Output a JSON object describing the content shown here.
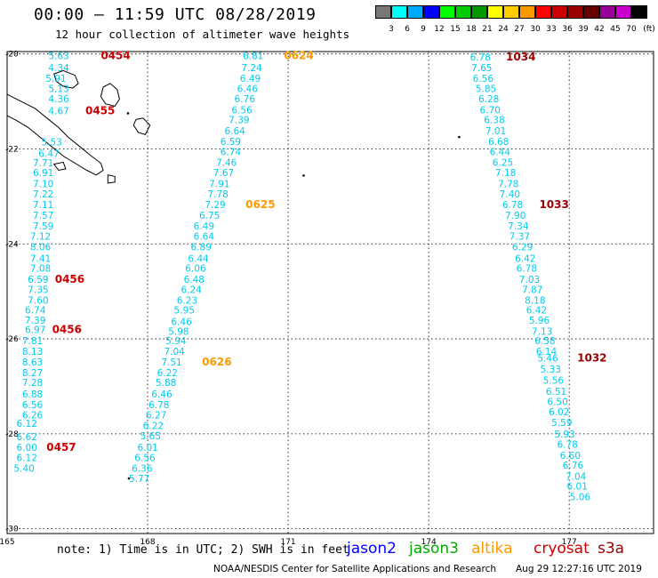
{
  "title": "00:00 – 11:59 UTC 08/28/2019",
  "subtitle": "12 hour collection of altimeter wave heights",
  "colorbar": {
    "unit": "(ft)",
    "colors": [
      "#777777",
      "#00ffff",
      "#00aaff",
      "#0000ff",
      "#00ff00",
      "#00cc00",
      "#009900",
      "#ffff00",
      "#ffcc00",
      "#ff9900",
      "#ff0000",
      "#cc0000",
      "#990000",
      "#660000",
      "#990099",
      "#cc00cc",
      "#000000"
    ],
    "labels": [
      "3",
      "6",
      "9",
      "12",
      "15",
      "18",
      "21",
      "24",
      "27",
      "30",
      "33",
      "36",
      "39",
      "42",
      "45",
      "70"
    ]
  },
  "axes": {
    "lon_ticks": [
      "165",
      "168",
      "171",
      "174",
      "177"
    ],
    "lat_ticks": [
      "-20",
      "-22",
      "-24",
      "-26",
      "-28",
      "-30"
    ],
    "lon_range": [
      165,
      178.8
    ],
    "lat_range": [
      -19.95,
      -30.1
    ]
  },
  "colors": {
    "swh": "#00ccee",
    "jason2": "#0000ff",
    "jason3": "#00aa00",
    "altika": "#ff9900",
    "cryosat": "#cc0000",
    "s3a": "#990000"
  },
  "tracks": [
    {
      "satellite": "cryosat",
      "points": [
        {
          "lon": 165.88,
          "lat": -20.03,
          "v": "5.63"
        },
        {
          "lon": 165.88,
          "lat": -20.29,
          "v": "4.34"
        },
        {
          "lon": 165.82,
          "lat": -20.51,
          "v": "5.91"
        },
        {
          "lon": 165.88,
          "lat": -20.73,
          "v": "5.13"
        },
        {
          "lon": 165.88,
          "lat": -20.94,
          "v": "4.36"
        },
        {
          "lon": 165.88,
          "lat": -21.2,
          "v": "4.67"
        },
        {
          "lon": 165.73,
          "lat": -21.85,
          "v": "5.53"
        },
        {
          "lon": 165.67,
          "lat": -22.09,
          "v": "6.47"
        },
        {
          "lon": 165.55,
          "lat": -22.29,
          "v": "7.71"
        },
        {
          "lon": 165.55,
          "lat": -22.5,
          "v": "6.91"
        },
        {
          "lon": 165.55,
          "lat": -22.73,
          "v": "7.10"
        },
        {
          "lon": 165.55,
          "lat": -22.95,
          "v": "7.22"
        },
        {
          "lon": 165.55,
          "lat": -23.17,
          "v": "7.11"
        },
        {
          "lon": 165.55,
          "lat": -23.4,
          "v": "7.57"
        },
        {
          "lon": 165.55,
          "lat": -23.62,
          "v": "7.59"
        },
        {
          "lon": 165.49,
          "lat": -23.84,
          "v": "7.12"
        },
        {
          "lon": 165.49,
          "lat": -24.06,
          "v": "8.06"
        },
        {
          "lon": 165.49,
          "lat": -24.3,
          "v": "7.41"
        },
        {
          "lon": 165.49,
          "lat": -24.51,
          "v": "7.08"
        },
        {
          "lon": 165.44,
          "lat": -24.74,
          "v": "6.59"
        },
        {
          "lon": 165.44,
          "lat": -24.96,
          "v": "7.35"
        },
        {
          "lon": 165.44,
          "lat": -25.18,
          "v": "7.60"
        },
        {
          "lon": 165.38,
          "lat": -25.39,
          "v": "6.74"
        },
        {
          "lon": 165.38,
          "lat": -25.61,
          "v": "7.39"
        },
        {
          "lon": 165.38,
          "lat": -25.8,
          "v": "6.97"
        },
        {
          "lon": 165.32,
          "lat": -26.04,
          "v": "7.81"
        },
        {
          "lon": 165.32,
          "lat": -26.26,
          "v": "8.13"
        },
        {
          "lon": 165.32,
          "lat": -26.49,
          "v": "8.63"
        },
        {
          "lon": 165.32,
          "lat": -26.71,
          "v": "8.27"
        },
        {
          "lon": 165.32,
          "lat": -26.92,
          "v": "7.28"
        },
        {
          "lon": 165.32,
          "lat": -27.16,
          "v": "6.88"
        },
        {
          "lon": 165.32,
          "lat": -27.38,
          "v": "6.56"
        },
        {
          "lon": 165.32,
          "lat": -27.6,
          "v": "6.26"
        },
        {
          "lon": 165.2,
          "lat": -27.78,
          "v": "6.12"
        },
        {
          "lon": 165.2,
          "lat": -28.06,
          "v": "6.62"
        },
        {
          "lon": 165.2,
          "lat": -28.28,
          "v": "6.00"
        },
        {
          "lon": 165.2,
          "lat": -28.5,
          "v": "6.12"
        },
        {
          "lon": 165.14,
          "lat": -28.72,
          "v": "5.40"
        }
      ],
      "times": [
        {
          "lon": 167.0,
          "lat": -20.03,
          "t": "0454"
        },
        {
          "lon": 166.67,
          "lat": -21.2,
          "t": "0455"
        },
        {
          "lon": 166.02,
          "lat": -24.74,
          "t": "0456"
        },
        {
          "lon": 165.96,
          "lat": -25.8,
          "t": "0456"
        },
        {
          "lon": 165.84,
          "lat": -28.28,
          "t": "0457"
        }
      ]
    },
    {
      "satellite": "altika",
      "points": [
        {
          "lon": 170.03,
          "lat": -20.03,
          "v": "6.81"
        },
        {
          "lon": 170.0,
          "lat": -20.29,
          "v": "7.24"
        },
        {
          "lon": 169.97,
          "lat": -20.51,
          "v": "6.49"
        },
        {
          "lon": 169.91,
          "lat": -20.73,
          "v": "6.46"
        },
        {
          "lon": 169.85,
          "lat": -20.94,
          "v": "6.76"
        },
        {
          "lon": 169.79,
          "lat": -21.18,
          "v": "6.56"
        },
        {
          "lon": 169.73,
          "lat": -21.38,
          "v": "7.39"
        },
        {
          "lon": 169.64,
          "lat": -21.62,
          "v": "6.64"
        },
        {
          "lon": 169.55,
          "lat": -21.84,
          "v": "6.59"
        },
        {
          "lon": 169.55,
          "lat": -22.06,
          "v": "6.74"
        },
        {
          "lon": 169.46,
          "lat": -22.28,
          "v": "7.46"
        },
        {
          "lon": 169.4,
          "lat": -22.5,
          "v": "7.67"
        },
        {
          "lon": 169.31,
          "lat": -22.73,
          "v": "7.91"
        },
        {
          "lon": 169.28,
          "lat": -22.95,
          "v": "7.78"
        },
        {
          "lon": 169.22,
          "lat": -23.17,
          "v": "7.29"
        },
        {
          "lon": 169.1,
          "lat": -23.4,
          "v": "6.75"
        },
        {
          "lon": 168.98,
          "lat": -23.62,
          "v": "6.49"
        },
        {
          "lon": 168.98,
          "lat": -23.84,
          "v": "6.64"
        },
        {
          "lon": 168.92,
          "lat": -24.06,
          "v": "6.89"
        },
        {
          "lon": 168.86,
          "lat": -24.3,
          "v": "6.44"
        },
        {
          "lon": 168.8,
          "lat": -24.51,
          "v": "6.06"
        },
        {
          "lon": 168.77,
          "lat": -24.74,
          "v": "6.48"
        },
        {
          "lon": 168.71,
          "lat": -24.96,
          "v": "6.24"
        },
        {
          "lon": 168.62,
          "lat": -25.18,
          "v": "6.23"
        },
        {
          "lon": 168.56,
          "lat": -25.39,
          "v": "5.95"
        },
        {
          "lon": 168.5,
          "lat": -25.63,
          "v": "6.46"
        },
        {
          "lon": 168.44,
          "lat": -25.84,
          "v": "5.98"
        },
        {
          "lon": 168.38,
          "lat": -26.04,
          "v": "5.94"
        },
        {
          "lon": 168.35,
          "lat": -26.26,
          "v": "7.04"
        },
        {
          "lon": 168.29,
          "lat": -26.49,
          "v": "7.51"
        },
        {
          "lon": 168.2,
          "lat": -26.71,
          "v": "6.22"
        },
        {
          "lon": 168.17,
          "lat": -26.92,
          "v": "5.88"
        },
        {
          "lon": 168.08,
          "lat": -27.16,
          "v": "6.46"
        },
        {
          "lon": 168.02,
          "lat": -27.38,
          "v": "6.78"
        },
        {
          "lon": 167.96,
          "lat": -27.6,
          "v": "6.27"
        },
        {
          "lon": 167.9,
          "lat": -27.82,
          "v": "6.22"
        },
        {
          "lon": 167.84,
          "lat": -28.04,
          "v": "5.65"
        },
        {
          "lon": 167.78,
          "lat": -28.28,
          "v": "6.01"
        },
        {
          "lon": 167.72,
          "lat": -28.5,
          "v": "6.56"
        },
        {
          "lon": 167.66,
          "lat": -28.72,
          "v": "6.36"
        },
        {
          "lon": 167.6,
          "lat": -28.94,
          "v": "5.77"
        }
      ],
      "times": [
        {
          "lon": 170.91,
          "lat": -20.03,
          "t": "0624"
        },
        {
          "lon": 170.09,
          "lat": -23.17,
          "t": "0625"
        },
        {
          "lon": 169.16,
          "lat": -26.49,
          "t": "0626"
        }
      ]
    },
    {
      "satellite": "s3a",
      "points": [
        {
          "lon": 174.88,
          "lat": -20.06,
          "v": "6.78"
        },
        {
          "lon": 174.91,
          "lat": -20.29,
          "v": "7.65"
        },
        {
          "lon": 174.94,
          "lat": -20.51,
          "v": "6.56"
        },
        {
          "lon": 175.0,
          "lat": -20.73,
          "v": "5.85"
        },
        {
          "lon": 175.06,
          "lat": -20.94,
          "v": "6.28"
        },
        {
          "lon": 175.09,
          "lat": -21.18,
          "v": "6.70"
        },
        {
          "lon": 175.18,
          "lat": -21.38,
          "v": "6.38"
        },
        {
          "lon": 175.21,
          "lat": -21.62,
          "v": "7.01"
        },
        {
          "lon": 175.27,
          "lat": -21.84,
          "v": "6.68"
        },
        {
          "lon": 175.3,
          "lat": -22.06,
          "v": "6.44"
        },
        {
          "lon": 175.36,
          "lat": -22.28,
          "v": "6.25"
        },
        {
          "lon": 175.42,
          "lat": -22.5,
          "v": "7.18"
        },
        {
          "lon": 175.48,
          "lat": -22.73,
          "v": "7.78"
        },
        {
          "lon": 175.51,
          "lat": -22.95,
          "v": "7.40"
        },
        {
          "lon": 175.57,
          "lat": -23.17,
          "v": "6.78"
        },
        {
          "lon": 175.63,
          "lat": -23.4,
          "v": "7.90"
        },
        {
          "lon": 175.69,
          "lat": -23.62,
          "v": "7.34"
        },
        {
          "lon": 175.72,
          "lat": -23.84,
          "v": "7.37"
        },
        {
          "lon": 175.78,
          "lat": -24.06,
          "v": "6.29"
        },
        {
          "lon": 175.84,
          "lat": -24.3,
          "v": "6.42"
        },
        {
          "lon": 175.87,
          "lat": -24.51,
          "v": "6.78"
        },
        {
          "lon": 175.93,
          "lat": -24.74,
          "v": "7.03"
        },
        {
          "lon": 175.99,
          "lat": -24.96,
          "v": "7.87"
        },
        {
          "lon": 176.05,
          "lat": -25.18,
          "v": "8.18"
        },
        {
          "lon": 176.08,
          "lat": -25.39,
          "v": "6.42"
        },
        {
          "lon": 176.14,
          "lat": -25.61,
          "v": "5.96"
        },
        {
          "lon": 176.2,
          "lat": -25.84,
          "v": "7.13"
        },
        {
          "lon": 176.26,
          "lat": -26.04,
          "v": "6.58"
        },
        {
          "lon": 176.29,
          "lat": -26.26,
          "v": "6.14"
        },
        {
          "lon": 176.32,
          "lat": -26.4,
          "v": "5.46"
        },
        {
          "lon": 176.38,
          "lat": -26.64,
          "v": "5.33"
        },
        {
          "lon": 176.44,
          "lat": -26.87,
          "v": "5.56"
        },
        {
          "lon": 176.5,
          "lat": -27.1,
          "v": "6.51"
        },
        {
          "lon": 176.53,
          "lat": -27.32,
          "v": "6.50"
        },
        {
          "lon": 176.56,
          "lat": -27.53,
          "v": "6.02"
        },
        {
          "lon": 176.62,
          "lat": -27.76,
          "v": "5.59"
        },
        {
          "lon": 176.68,
          "lat": -28.0,
          "v": "5.93"
        },
        {
          "lon": 176.74,
          "lat": -28.22,
          "v": "6.78"
        },
        {
          "lon": 176.8,
          "lat": -28.45,
          "v": "6.60"
        },
        {
          "lon": 176.86,
          "lat": -28.66,
          "v": "6.76"
        },
        {
          "lon": 176.92,
          "lat": -28.89,
          "v": "7.04"
        },
        {
          "lon": 176.95,
          "lat": -29.1,
          "v": "6.01"
        },
        {
          "lon": 177.01,
          "lat": -29.32,
          "v": "5.06"
        }
      ],
      "times": [
        {
          "lon": 175.65,
          "lat": -20.06,
          "t": "1034"
        },
        {
          "lon": 176.36,
          "lat": -23.17,
          "t": "1033"
        },
        {
          "lon": 177.17,
          "lat": -26.4,
          "t": "1032"
        }
      ]
    }
  ],
  "footer": {
    "note": "note: 1) Time is in UTC; 2) SWH is in feet",
    "satellites": [
      {
        "key": "jason2",
        "label": "jason2",
        "color": "#0000ff"
      },
      {
        "key": "jason3",
        "label": "jason3",
        "color": "#00aa00"
      },
      {
        "key": "altika",
        "label": "altika",
        "color": "#ff9900"
      },
      {
        "key": "cryosat",
        "label": "cryosat",
        "color": "#cc0000"
      },
      {
        "key": "s3a",
        "label": "s3a",
        "color": "#990000"
      }
    ],
    "credit": "NOAA/NESDIS Center for Satellite Applications and Research",
    "stamp": "Aug 29 12:27:16 UTC 2019"
  }
}
